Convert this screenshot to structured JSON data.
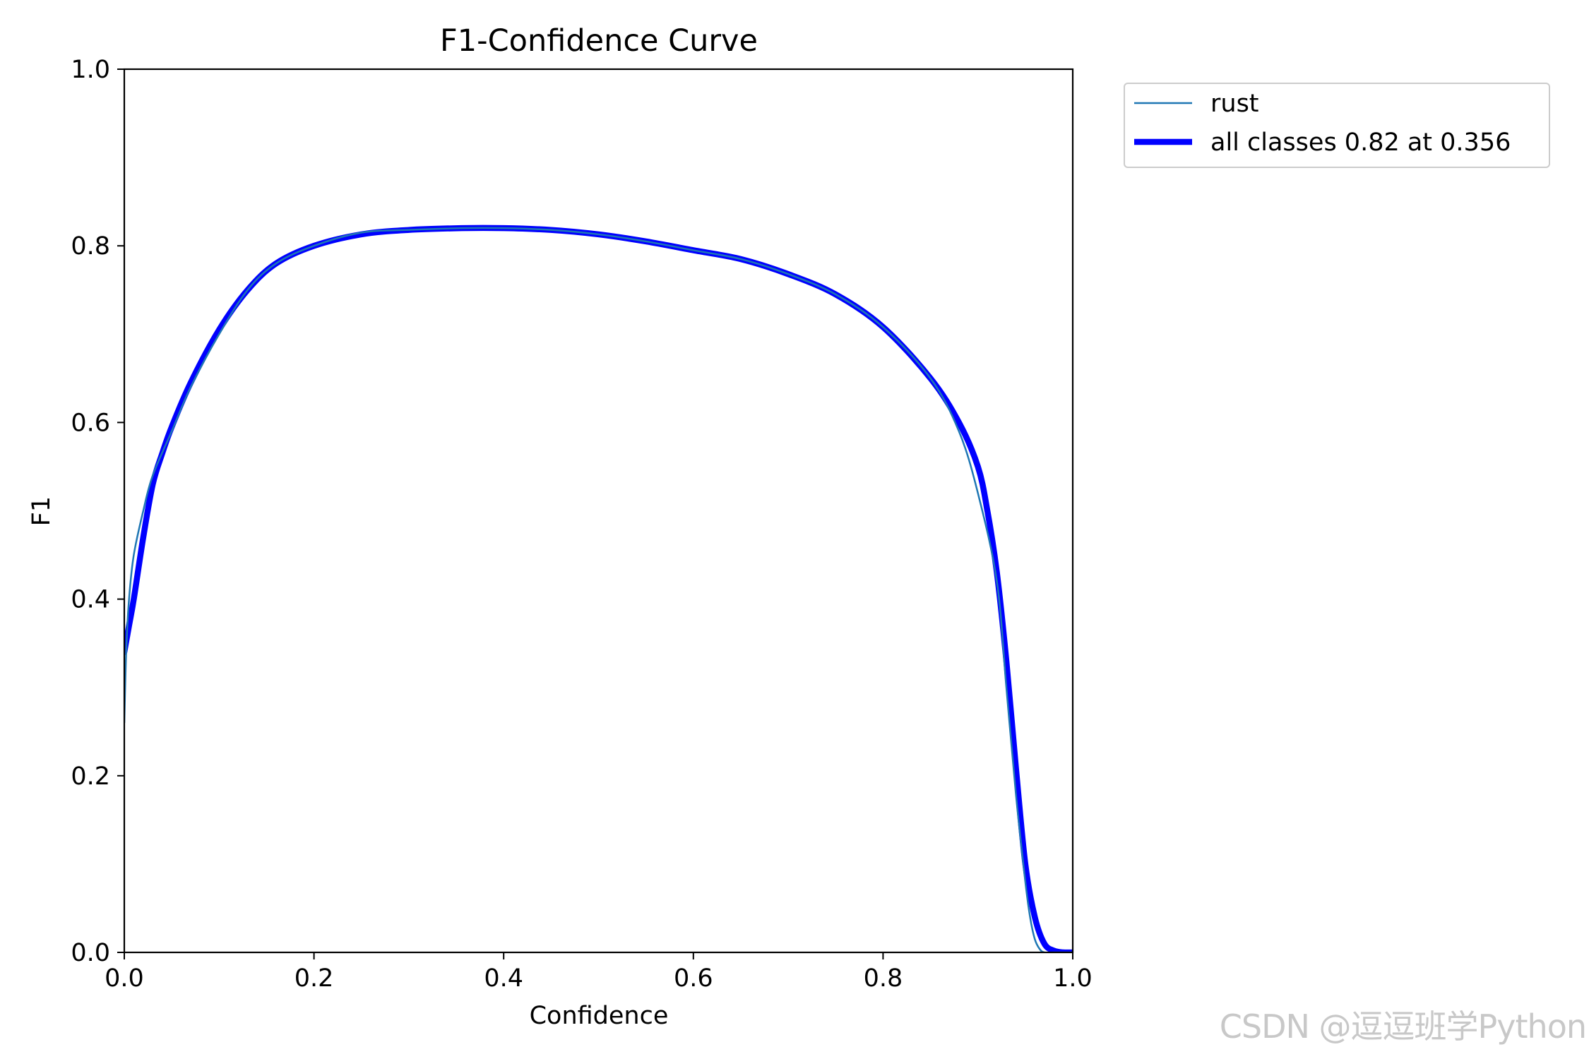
{
  "watermark": "CSDN @逗逗班学Python",
  "chart_data": {
    "type": "line",
    "title": "F1-Confidence Curve",
    "xlabel": "Confidence",
    "ylabel": "F1",
    "xlim": [
      0.0,
      1.0
    ],
    "ylim": [
      0.0,
      1.0
    ],
    "xticks": [
      "0.0",
      "0.2",
      "0.4",
      "0.6",
      "0.8",
      "1.0"
    ],
    "yticks": [
      "0.0",
      "0.2",
      "0.4",
      "0.6",
      "0.8",
      "1.0"
    ],
    "grid": false,
    "legend_position": "outside-top-right",
    "series": [
      {
        "name": "rust",
        "color": "#1f77b4",
        "style": "thin",
        "x": [
          0.0,
          0.002,
          0.005,
          0.01,
          0.02,
          0.03,
          0.05,
          0.07,
          0.1,
          0.13,
          0.16,
          0.2,
          0.25,
          0.3,
          0.356,
          0.4,
          0.45,
          0.5,
          0.55,
          0.6,
          0.65,
          0.7,
          0.75,
          0.8,
          0.85,
          0.88,
          0.9,
          0.92,
          0.93,
          0.94,
          0.95,
          0.955,
          0.96,
          0.965,
          0.97,
          0.98,
          1.0
        ],
        "y": [
          0.26,
          0.34,
          0.4,
          0.45,
          0.5,
          0.54,
          0.59,
          0.64,
          0.7,
          0.75,
          0.78,
          0.8,
          0.815,
          0.818,
          0.82,
          0.82,
          0.818,
          0.813,
          0.805,
          0.795,
          0.785,
          0.768,
          0.745,
          0.708,
          0.65,
          0.59,
          0.52,
          0.42,
          0.3,
          0.18,
          0.08,
          0.04,
          0.015,
          0.004,
          0.0,
          0.0,
          0.0
        ]
      },
      {
        "name": "all classes 0.82 at 0.356",
        "color": "#0000ff",
        "style": "thick",
        "x": [
          0.0,
          0.005,
          0.01,
          0.02,
          0.03,
          0.04,
          0.05,
          0.07,
          0.1,
          0.13,
          0.16,
          0.2,
          0.25,
          0.3,
          0.356,
          0.4,
          0.45,
          0.5,
          0.55,
          0.6,
          0.65,
          0.7,
          0.75,
          0.8,
          0.85,
          0.88,
          0.9,
          0.91,
          0.92,
          0.93,
          0.94,
          0.95,
          0.96,
          0.97,
          0.98,
          0.99,
          1.0
        ],
        "y": [
          0.34,
          0.37,
          0.4,
          0.47,
          0.53,
          0.565,
          0.595,
          0.645,
          0.705,
          0.75,
          0.78,
          0.8,
          0.813,
          0.818,
          0.82,
          0.82,
          0.818,
          0.813,
          0.805,
          0.795,
          0.785,
          0.768,
          0.745,
          0.708,
          0.65,
          0.6,
          0.55,
          0.5,
          0.43,
          0.33,
          0.21,
          0.1,
          0.04,
          0.01,
          0.002,
          0.0,
          0.0
        ]
      }
    ]
  }
}
